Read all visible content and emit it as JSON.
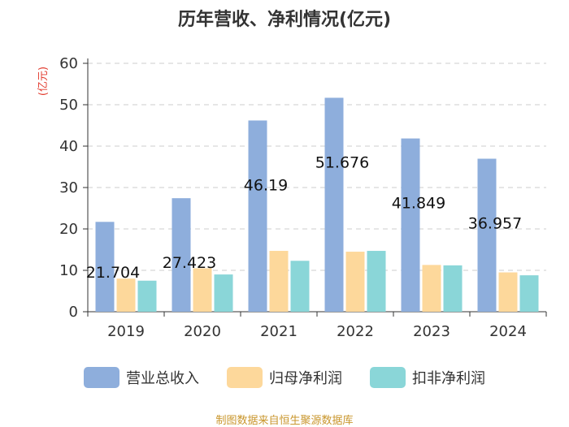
{
  "chart_data": {
    "type": "bar",
    "title": "历年营收、净利情况(亿元)",
    "ylabel": "(亿元)",
    "xlabel": "",
    "ylim": [
      0,
      60
    ],
    "yticks": [
      0,
      10,
      20,
      30,
      40,
      50,
      60
    ],
    "grid": true,
    "categories": [
      "2019",
      "2020",
      "2021",
      "2022",
      "2023",
      "2024"
    ],
    "series": [
      {
        "name": "营业总收入",
        "color": "#8eaedc",
        "values": [
          21.704,
          27.423,
          46.19,
          51.676,
          41.849,
          36.957
        ]
      },
      {
        "name": "归母净利润",
        "color": "#fdd89b",
        "values": [
          8.0,
          10.5,
          14.7,
          14.5,
          11.3,
          9.5
        ]
      },
      {
        "name": "扣非净利润",
        "color": "#8ad6d8",
        "values": [
          7.5,
          9.0,
          12.3,
          14.7,
          11.2,
          8.8
        ]
      }
    ],
    "data_labels": [
      "21.704",
      "27.423",
      "46.19",
      "51.676",
      "41.849",
      "36.957"
    ],
    "legend_position": "bottom"
  },
  "source_text": "制图数据来自恒生聚源数据库"
}
